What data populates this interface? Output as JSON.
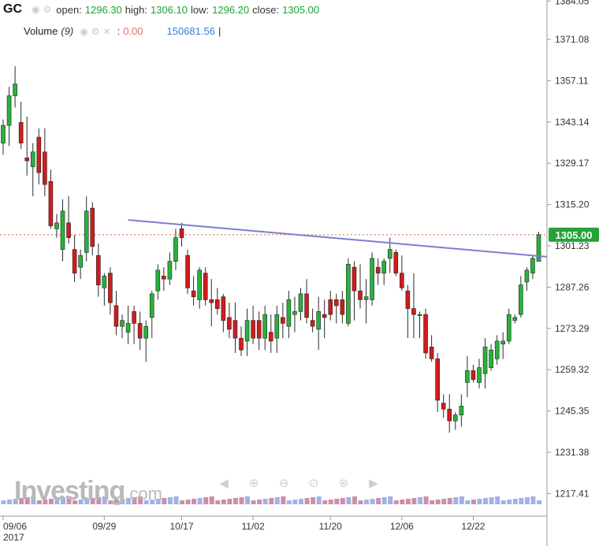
{
  "header": {
    "symbol": "GC",
    "open_label": "open:",
    "open": "1296.30",
    "high_label": "high:",
    "high": "1306.10",
    "low_label": "low:",
    "low": "1296.20",
    "close_label": "close:",
    "close": "1305.00",
    "volume_label": "Volume",
    "volume_period": "(9)",
    "volume_sep": ":",
    "volume_value_1": "0.00",
    "volume_value_2": "150681.56",
    "volume_tail": "|"
  },
  "watermark": {
    "brand": "Investing",
    "suffix": ".com"
  },
  "nav_icons": [
    "arrow-left-icon",
    "zoom-in-icon",
    "zoom-out-icon",
    "zoom-reset-icon",
    "zoom-fit-icon",
    "arrow-right-icon"
  ],
  "colors": {
    "up": "#1aa533",
    "up_body": "#27b23b",
    "down": "#d21b1b",
    "wick": "#2b2b2b",
    "trendline": "#7b7fd0",
    "price_line": "#d96a4a",
    "price_tag": "#27a23a",
    "volume_up": "#8fa6de",
    "volume_down": "#c27b9b",
    "grid": "#e3e3e3"
  },
  "chart_data": {
    "type": "candlestick",
    "y_axis": {
      "side": "right",
      "ticks": [
        "1384.05",
        "1371.08",
        "1357.11",
        "1343.14",
        "1329.17",
        "1315.20",
        "1301.23",
        "1287.26",
        "1273.29",
        "1259.32",
        "1245.35",
        "1231.38",
        "1217.41"
      ],
      "min": 1210,
      "max": 1386
    },
    "x_axis": {
      "ticks": [
        "09/06",
        "09/29",
        "10/17",
        "11/02",
        "11/20",
        "12/06",
        "12/22"
      ],
      "tick_index": [
        0,
        17,
        30,
        42,
        55,
        67,
        79
      ],
      "year_label": "2017"
    },
    "current_price": "1305.00",
    "trendline": {
      "from_index": 21,
      "from_value": 1310,
      "to_index": 86,
      "to_value": 1298.5
    },
    "candles": [
      [
        1336,
        1344,
        1332,
        1342
      ],
      [
        1342,
        1355,
        1335,
        1352
      ],
      [
        1352,
        1362,
        1348,
        1356
      ],
      [
        1343,
        1350,
        1334,
        1336
      ],
      [
        1331,
        1345,
        1325,
        1330
      ],
      [
        1328,
        1336,
        1318,
        1333
      ],
      [
        1338,
        1341,
        1322,
        1326
      ],
      [
        1333,
        1341,
        1318,
        1322
      ],
      [
        1323,
        1327,
        1307,
        1308
      ],
      [
        1307,
        1312,
        1304,
        1309
      ],
      [
        1300,
        1317,
        1296,
        1313
      ],
      [
        1309,
        1318,
        1302,
        1304
      ],
      [
        1300,
        1305,
        1289,
        1292
      ],
      [
        1294,
        1300,
        1290,
        1298
      ],
      [
        1299,
        1318,
        1296,
        1313
      ],
      [
        1314,
        1316,
        1298,
        1301
      ],
      [
        1298,
        1302,
        1284,
        1288
      ],
      [
        1287,
        1292,
        1281,
        1291
      ],
      [
        1292,
        1294,
        1278,
        1282
      ],
      [
        1281,
        1286,
        1271,
        1274
      ],
      [
        1274,
        1278,
        1270,
        1276
      ],
      [
        1272,
        1281,
        1268,
        1275
      ],
      [
        1279,
        1281,
        1268,
        1275
      ],
      [
        1275,
        1279,
        1266,
        1270
      ],
      [
        1270,
        1276,
        1262,
        1274
      ],
      [
        1277,
        1286,
        1270,
        1285
      ],
      [
        1286,
        1295,
        1283,
        1293
      ],
      [
        1291,
        1294,
        1286,
        1290
      ],
      [
        1290,
        1299,
        1288,
        1296
      ],
      [
        1296,
        1307,
        1293,
        1304
      ],
      [
        1307,
        1309,
        1301,
        1304
      ],
      [
        1298,
        1300,
        1285,
        1287
      ],
      [
        1286,
        1291,
        1281,
        1284
      ],
      [
        1283,
        1294,
        1280,
        1293
      ],
      [
        1292,
        1294,
        1281,
        1283
      ],
      [
        1283,
        1290,
        1274,
        1282
      ],
      [
        1283,
        1287,
        1278,
        1280
      ],
      [
        1284,
        1285,
        1272,
        1276
      ],
      [
        1277,
        1282,
        1270,
        1273
      ],
      [
        1276,
        1282,
        1265,
        1270
      ],
      [
        1270,
        1274,
        1264,
        1266
      ],
      [
        1269,
        1280,
        1264,
        1276
      ],
      [
        1276,
        1281,
        1268,
        1270
      ],
      [
        1276,
        1279,
        1266,
        1270
      ],
      [
        1270,
        1281,
        1266,
        1278
      ],
      [
        1272,
        1278,
        1265,
        1269
      ],
      [
        1270,
        1281,
        1265,
        1278
      ],
      [
        1277,
        1282,
        1270,
        1275
      ],
      [
        1274,
        1286,
        1270,
        1283
      ],
      [
        1278,
        1284,
        1272,
        1279
      ],
      [
        1279,
        1287,
        1276,
        1285
      ],
      [
        1285,
        1290,
        1275,
        1277
      ],
      [
        1276,
        1280,
        1272,
        1274
      ],
      [
        1273,
        1284,
        1266,
        1279
      ],
      [
        1278,
        1283,
        1270,
        1277
      ],
      [
        1283,
        1286,
        1276,
        1278
      ],
      [
        1283,
        1285,
        1275,
        1281
      ],
      [
        1283,
        1286,
        1275,
        1278
      ],
      [
        1275,
        1297,
        1274,
        1295
      ],
      [
        1294,
        1296,
        1276,
        1286
      ],
      [
        1286,
        1295,
        1280,
        1283
      ],
      [
        1283,
        1290,
        1275,
        1284
      ],
      [
        1283,
        1299,
        1281,
        1297
      ],
      [
        1294,
        1297,
        1288,
        1292
      ],
      [
        1292,
        1297,
        1288,
        1296
      ],
      [
        1297,
        1304,
        1292,
        1300
      ],
      [
        1299,
        1300,
        1291,
        1292
      ],
      [
        1292,
        1298,
        1286,
        1287
      ],
      [
        1286,
        1288,
        1270,
        1280
      ],
      [
        1280,
        1292,
        1270,
        1278
      ],
      [
        1278,
        1279,
        1270,
        1278
      ],
      [
        1278,
        1280,
        1263,
        1265
      ],
      [
        1267,
        1271,
        1262,
        1263
      ],
      [
        1263,
        1265,
        1245,
        1249
      ],
      [
        1248,
        1251,
        1243,
        1246
      ],
      [
        1246,
        1251,
        1238,
        1242
      ],
      [
        1242,
        1245,
        1239,
        1244
      ],
      [
        1244,
        1251,
        1240,
        1247
      ],
      [
        1255,
        1264,
        1250,
        1259
      ],
      [
        1259,
        1261,
        1255,
        1256
      ],
      [
        1255,
        1263,
        1253,
        1260
      ],
      [
        1258,
        1270,
        1253,
        1267
      ],
      [
        1260,
        1268,
        1259,
        1266
      ],
      [
        1263,
        1271,
        1261,
        1269
      ],
      [
        1268,
        1272,
        1263,
        1269
      ],
      [
        1269,
        1280,
        1268,
        1278
      ],
      [
        1276,
        1278,
        1275,
        1277
      ],
      [
        1278,
        1291,
        1277,
        1288
      ],
      [
        1289,
        1294,
        1286,
        1293
      ],
      [
        1292,
        1298,
        1290,
        1297
      ],
      [
        1296,
        1306,
        1296,
        1305
      ]
    ]
  }
}
